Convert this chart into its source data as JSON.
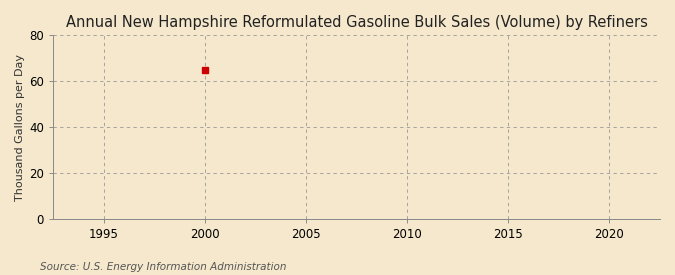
{
  "title": "Annual New Hampshire Reformulated Gasoline Bulk Sales (Volume) by Refiners",
  "ylabel": "Thousand Gallons per Day",
  "source": "Source: U.S. Energy Information Administration",
  "background_color": "#f5e8cc",
  "plot_background_color": "#f5e8cc",
  "data_x": [
    2000
  ],
  "data_y": [
    65.0
  ],
  "marker_color": "#cc0000",
  "marker_size": 4,
  "xlim": [
    1992.5,
    2022.5
  ],
  "ylim": [
    0,
    80
  ],
  "xticks": [
    1995,
    2000,
    2005,
    2010,
    2015,
    2020
  ],
  "yticks": [
    0,
    20,
    40,
    60,
    80
  ],
  "grid_color": "#999999",
  "title_fontsize": 10.5,
  "label_fontsize": 8,
  "tick_fontsize": 8.5,
  "source_fontsize": 7.5
}
